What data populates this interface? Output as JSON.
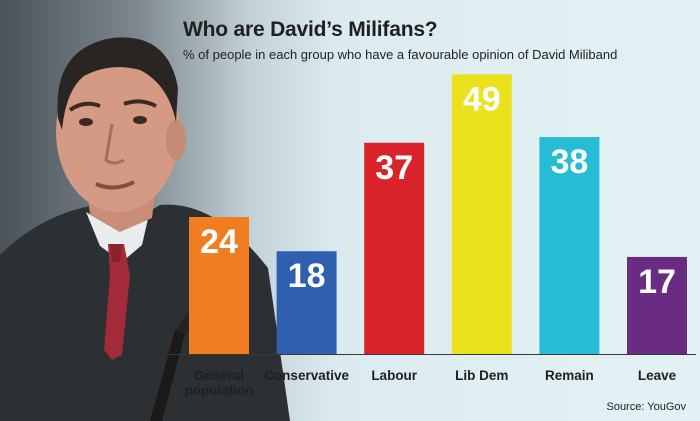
{
  "header": {
    "title": "Who are David’s Milifans?",
    "subtitle": "% of people in each group who have a favourable opinion of David Miliband"
  },
  "footer": {
    "source": "Source: YouGov"
  },
  "photo": {
    "icon": "man-in-suit-photo"
  },
  "chart_data": {
    "type": "bar",
    "categories": [
      [
        "General",
        "population"
      ],
      [
        "Conservative"
      ],
      [
        "Labour"
      ],
      [
        "Lib Dem"
      ],
      [
        "Remain"
      ],
      [
        "Leave"
      ]
    ],
    "values": [
      24,
      18,
      37,
      49,
      38,
      17
    ],
    "colors": [
      "#f07d20",
      "#2f5fae",
      "#d9242b",
      "#ece11d",
      "#26bcd6",
      "#6a2b82"
    ],
    "value_label_color": "#ffffff",
    "ylim": [
      0,
      55
    ],
    "grid": false,
    "legend": "none",
    "axis_line": "baseline"
  }
}
